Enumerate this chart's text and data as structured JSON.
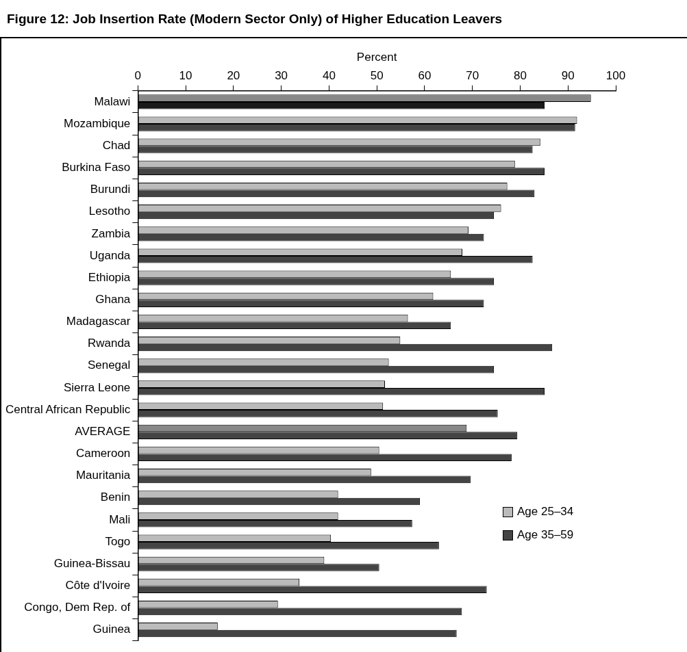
{
  "chart_data": {
    "type": "bar",
    "orientation": "horizontal",
    "title": "Figure 12: Job Insertion Rate (Modern Sector Only) of Higher Education Leavers",
    "xlabel": "Percent",
    "categories": [
      "Malawi",
      "Mozambique",
      "Chad",
      "Burkina Faso",
      "Burundi",
      "Lesotho",
      "Zambia",
      "Uganda",
      "Ethiopia",
      "Ghana",
      "Madagascar",
      "Rwanda",
      "Senegal",
      "Sierra Leone",
      "Central African Republic",
      "AVERAGE",
      "Cameroon",
      "Mauritania",
      "Benin",
      "Mali",
      "Togo",
      "Guinea-Bissau",
      "Côte d'Ivoire",
      "Congo, Dem Rep. of",
      "Guinea"
    ],
    "series": [
      {
        "name": "Age 25–34",
        "color": "#bbbbbb",
        "colors": [
          "#888888",
          "#bbbbbb",
          "#bbbbbb",
          "#bbbbbb",
          "#bbbbbb",
          "#bbbbbb",
          "#bbbbbb",
          "#bbbbbb",
          "#bbbbbb",
          "#bbbbbb",
          "#bbbbbb",
          "#bbbbbb",
          "#bbbbbb",
          "#bbbbbb",
          "#bbbbbb",
          "#888888",
          "#bbbbbb",
          "#bbbbbb",
          "#bbbbbb",
          "#bbbbbb",
          "#bbbbbb",
          "#bbbbbb",
          "#bbbbbb",
          "#bbbbbb",
          "#bbbbbb"
        ],
        "values": [
          94.8,
          91.9,
          84.2,
          78.9,
          77.3,
          76.0,
          69.2,
          67.9,
          65.5,
          61.8,
          56.5,
          54.9,
          52.5,
          51.7,
          51.3,
          68.8,
          50.5,
          48.8,
          41.9,
          41.9,
          40.4,
          39.0,
          33.8,
          29.3,
          16.7
        ]
      },
      {
        "name": "Age 35–59",
        "color": "#444444",
        "colors": [
          "#1a1a1a",
          "#444444",
          "#444444",
          "#444444",
          "#444444",
          "#444444",
          "#444444",
          "#444444",
          "#444444",
          "#444444",
          "#444444",
          "#444444",
          "#444444",
          "#444444",
          "#444444",
          "#444444",
          "#444444",
          "#444444",
          "#444444",
          "#444444",
          "#444444",
          "#444444",
          "#444444",
          "#444444",
          "#444444"
        ],
        "values": [
          85.1,
          91.5,
          82.6,
          85.1,
          83.0,
          74.5,
          72.4,
          82.6,
          74.5,
          72.4,
          65.5,
          86.7,
          74.5,
          85.1,
          75.3,
          79.4,
          78.2,
          69.6,
          59.0,
          57.4,
          63.0,
          50.5,
          73.0,
          67.8,
          66.7
        ]
      }
    ],
    "xlim": [
      0,
      100
    ],
    "xticks": [
      0,
      10,
      20,
      30,
      40,
      50,
      60,
      70,
      80,
      90,
      100
    ],
    "grid": false,
    "legend": "right"
  }
}
